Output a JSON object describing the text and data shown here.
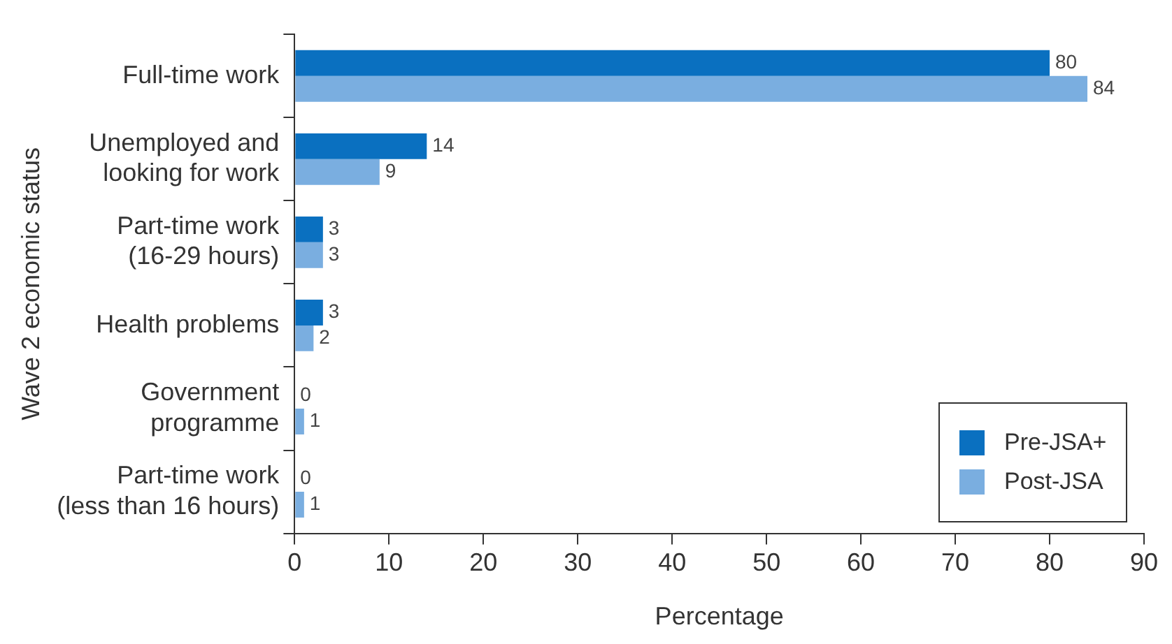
{
  "chart_data": {
    "type": "bar",
    "orientation": "horizontal",
    "categories": [
      "Full-time work",
      "Unemployed and\nlooking for work",
      "Part-time work\n(16-29 hours)",
      "Health problems",
      "Government\nprogramme",
      "Part-time work\n(less than 16 hours)"
    ],
    "series": [
      {
        "name": "Pre-JSA+",
        "color": "#0a70c0",
        "values": [
          80,
          14,
          3,
          3,
          0,
          0
        ]
      },
      {
        "name": "Post-JSA",
        "color": "#7aaee0",
        "values": [
          84,
          9,
          3,
          2,
          1,
          1
        ]
      }
    ],
    "xlim": [
      0,
      90
    ],
    "xticks": [
      0,
      10,
      20,
      30,
      40,
      50,
      60,
      70,
      80,
      90
    ],
    "xlabel": "Percentage",
    "ylabel": "Wave 2 economic status",
    "data_labels": true,
    "grid": false,
    "legend": "bottom right"
  }
}
